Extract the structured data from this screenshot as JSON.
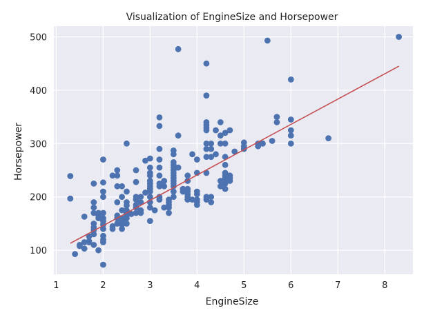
{
  "chart_data": {
    "type": "scatter",
    "title": "Visualization of EngineSize and Horsepower",
    "xlabel": "EngineSize",
    "ylabel": "Horsepower",
    "xlim": [
      0.95,
      8.6
    ],
    "ylim": [
      55,
      520
    ],
    "x_ticks": [
      1,
      2,
      3,
      4,
      5,
      6,
      7,
      8
    ],
    "y_ticks": [
      100,
      200,
      300,
      400,
      500
    ],
    "grid": true,
    "background": "#eaeaf2",
    "point_color": "#4c72b0",
    "line_color": "#c44e52",
    "fit_line": {
      "x": [
        1.3,
        8.3
      ],
      "y": [
        113,
        445
      ]
    },
    "points": [
      [
        1.3,
        239
      ],
      [
        1.3,
        197
      ],
      [
        1.4,
        93
      ],
      [
        1.5,
        110
      ],
      [
        1.5,
        108
      ],
      [
        1.6,
        103
      ],
      [
        1.6,
        115
      ],
      [
        1.6,
        163
      ],
      [
        1.7,
        115
      ],
      [
        1.7,
        117
      ],
      [
        1.7,
        126
      ],
      [
        1.8,
        170
      ],
      [
        1.8,
        180
      ],
      [
        1.8,
        190
      ],
      [
        1.8,
        225
      ],
      [
        1.8,
        138
      ],
      [
        1.8,
        130
      ],
      [
        1.8,
        150
      ],
      [
        1.8,
        143
      ],
      [
        1.8,
        110
      ],
      [
        1.9,
        100
      ],
      [
        1.9,
        170
      ],
      [
        1.9,
        160
      ],
      [
        1.9,
        165
      ],
      [
        2.0,
        73
      ],
      [
        2.0,
        115
      ],
      [
        2.0,
        120
      ],
      [
        2.0,
        127
      ],
      [
        2.0,
        140
      ],
      [
        2.0,
        148
      ],
      [
        2.0,
        155
      ],
      [
        2.0,
        160
      ],
      [
        2.0,
        170
      ],
      [
        2.0,
        200
      ],
      [
        2.0,
        210
      ],
      [
        2.0,
        227
      ],
      [
        2.0,
        270
      ],
      [
        2.2,
        140
      ],
      [
        2.2,
        145
      ],
      [
        2.2,
        240
      ],
      [
        2.3,
        150
      ],
      [
        2.3,
        160
      ],
      [
        2.3,
        165
      ],
      [
        2.3,
        190
      ],
      [
        2.3,
        220
      ],
      [
        2.3,
        240
      ],
      [
        2.3,
        250
      ],
      [
        2.4,
        140
      ],
      [
        2.4,
        148
      ],
      [
        2.4,
        150
      ],
      [
        2.4,
        155
      ],
      [
        2.4,
        160
      ],
      [
        2.4,
        175
      ],
      [
        2.4,
        200
      ],
      [
        2.4,
        220
      ],
      [
        2.5,
        150
      ],
      [
        2.5,
        160
      ],
      [
        2.5,
        165
      ],
      [
        2.5,
        170
      ],
      [
        2.5,
        175
      ],
      [
        2.5,
        184
      ],
      [
        2.5,
        190
      ],
      [
        2.5,
        210
      ],
      [
        2.5,
        300
      ],
      [
        2.6,
        168
      ],
      [
        2.7,
        170
      ],
      [
        2.7,
        180
      ],
      [
        2.7,
        185
      ],
      [
        2.7,
        195
      ],
      [
        2.7,
        200
      ],
      [
        2.7,
        228
      ],
      [
        2.7,
        250
      ],
      [
        2.8,
        170
      ],
      [
        2.8,
        175
      ],
      [
        2.8,
        190
      ],
      [
        2.8,
        200
      ],
      [
        2.9,
        208
      ],
      [
        2.9,
        268
      ],
      [
        3.0,
        155
      ],
      [
        3.0,
        180
      ],
      [
        3.0,
        190
      ],
      [
        3.0,
        200
      ],
      [
        3.0,
        210
      ],
      [
        3.0,
        215
      ],
      [
        3.0,
        220
      ],
      [
        3.0,
        225
      ],
      [
        3.0,
        230
      ],
      [
        3.0,
        240
      ],
      [
        3.0,
        245
      ],
      [
        3.0,
        255
      ],
      [
        3.0,
        272
      ],
      [
        3.1,
        175
      ],
      [
        3.2,
        195
      ],
      [
        3.2,
        200
      ],
      [
        3.2,
        220
      ],
      [
        3.2,
        225
      ],
      [
        3.2,
        240
      ],
      [
        3.2,
        255
      ],
      [
        3.2,
        270
      ],
      [
        3.2,
        290
      ],
      [
        3.2,
        333
      ],
      [
        3.2,
        349
      ],
      [
        3.3,
        180
      ],
      [
        3.3,
        220
      ],
      [
        3.3,
        230
      ],
      [
        3.4,
        170
      ],
      [
        3.4,
        180
      ],
      [
        3.4,
        185
      ],
      [
        3.4,
        190
      ],
      [
        3.4,
        195
      ],
      [
        3.5,
        200
      ],
      [
        3.5,
        210
      ],
      [
        3.5,
        220
      ],
      [
        3.5,
        225
      ],
      [
        3.5,
        230
      ],
      [
        3.5,
        235
      ],
      [
        3.5,
        240
      ],
      [
        3.5,
        245
      ],
      [
        3.5,
        250
      ],
      [
        3.5,
        255
      ],
      [
        3.5,
        260
      ],
      [
        3.5,
        265
      ],
      [
        3.5,
        280
      ],
      [
        3.5,
        287
      ],
      [
        3.6,
        255
      ],
      [
        3.6,
        315
      ],
      [
        3.6,
        477
      ],
      [
        3.7,
        210
      ],
      [
        3.7,
        215
      ],
      [
        3.8,
        195
      ],
      [
        3.8,
        200
      ],
      [
        3.8,
        205
      ],
      [
        3.8,
        210
      ],
      [
        3.8,
        215
      ],
      [
        3.8,
        230
      ],
      [
        3.8,
        240
      ],
      [
        3.9,
        195
      ],
      [
        3.9,
        280
      ],
      [
        4.0,
        185
      ],
      [
        4.0,
        190
      ],
      [
        4.0,
        195
      ],
      [
        4.0,
        205
      ],
      [
        4.0,
        210
      ],
      [
        4.0,
        245
      ],
      [
        4.0,
        270
      ],
      [
        4.2,
        195
      ],
      [
        4.2,
        200
      ],
      [
        4.2,
        245
      ],
      [
        4.2,
        275
      ],
      [
        4.2,
        290
      ],
      [
        4.2,
        300
      ],
      [
        4.2,
        325
      ],
      [
        4.2,
        330
      ],
      [
        4.2,
        335
      ],
      [
        4.2,
        340
      ],
      [
        4.2,
        390
      ],
      [
        4.2,
        450
      ],
      [
        4.3,
        190
      ],
      [
        4.3,
        200
      ],
      [
        4.3,
        275
      ],
      [
        4.3,
        290
      ],
      [
        4.3,
        300
      ],
      [
        4.4,
        280
      ],
      [
        4.4,
        325
      ],
      [
        4.5,
        220
      ],
      [
        4.5,
        230
      ],
      [
        4.5,
        300
      ],
      [
        4.5,
        315
      ],
      [
        4.5,
        340
      ],
      [
        4.6,
        215
      ],
      [
        4.6,
        225
      ],
      [
        4.6,
        235
      ],
      [
        4.6,
        240
      ],
      [
        4.6,
        245
      ],
      [
        4.6,
        260
      ],
      [
        4.6,
        275
      ],
      [
        4.6,
        300
      ],
      [
        4.6,
        320
      ],
      [
        4.7,
        230
      ],
      [
        4.7,
        235
      ],
      [
        4.7,
        240
      ],
      [
        4.7,
        325
      ],
      [
        4.8,
        285
      ],
      [
        5.0,
        290
      ],
      [
        5.0,
        295
      ],
      [
        5.0,
        302
      ],
      [
        5.3,
        295
      ],
      [
        5.3,
        300
      ],
      [
        5.4,
        300
      ],
      [
        5.5,
        493
      ],
      [
        5.6,
        305
      ],
      [
        5.7,
        340
      ],
      [
        5.7,
        350
      ],
      [
        6.0,
        300
      ],
      [
        6.0,
        315
      ],
      [
        6.0,
        325
      ],
      [
        6.0,
        345
      ],
      [
        6.0,
        420
      ],
      [
        6.8,
        310
      ],
      [
        8.3,
        500
      ]
    ]
  }
}
